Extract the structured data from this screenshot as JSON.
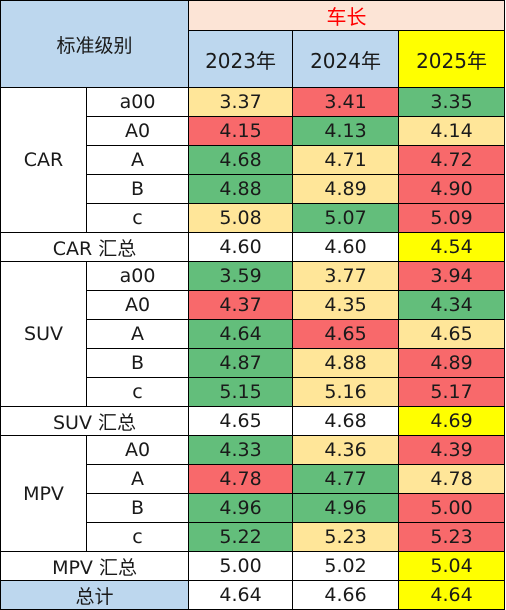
{
  "header": {
    "level_label": "标准级别",
    "metric": "车长",
    "years": [
      "2023年",
      "2024年",
      "2025年"
    ]
  },
  "colors": {
    "green": "#63be7b",
    "yellow": "#ffe699",
    "red": "#f8696b",
    "highlight": "#ffff00",
    "header_blue": "#bdd7ee",
    "header_peach": "#fce4d6"
  },
  "groups": [
    {
      "name": "CAR",
      "rows": [
        {
          "level": "a00",
          "values": [
            "3.37",
            "3.41",
            "3.35"
          ],
          "colors": [
            "y",
            "r",
            "g"
          ]
        },
        {
          "level": "A0",
          "values": [
            "4.15",
            "4.13",
            "4.14"
          ],
          "colors": [
            "r",
            "g",
            "y"
          ]
        },
        {
          "level": "A",
          "values": [
            "4.68",
            "4.71",
            "4.72"
          ],
          "colors": [
            "g",
            "y",
            "r"
          ]
        },
        {
          "level": "B",
          "values": [
            "4.88",
            "4.89",
            "4.90"
          ],
          "colors": [
            "g",
            "y",
            "r"
          ]
        },
        {
          "level": "c",
          "values": [
            "5.08",
            "5.07",
            "5.09"
          ],
          "colors": [
            "y",
            "g",
            "r"
          ]
        }
      ],
      "summary": {
        "label": "CAR 汇总",
        "values": [
          "4.60",
          "4.60",
          "4.54"
        ]
      }
    },
    {
      "name": "SUV",
      "rows": [
        {
          "level": "a00",
          "values": [
            "3.59",
            "3.77",
            "3.94"
          ],
          "colors": [
            "g",
            "y",
            "r"
          ]
        },
        {
          "level": "A0",
          "values": [
            "4.37",
            "4.35",
            "4.34"
          ],
          "colors": [
            "r",
            "y",
            "g"
          ]
        },
        {
          "level": "A",
          "values": [
            "4.64",
            "4.65",
            "4.65"
          ],
          "colors": [
            "g",
            "r",
            "y"
          ]
        },
        {
          "level": "B",
          "values": [
            "4.87",
            "4.88",
            "4.89"
          ],
          "colors": [
            "g",
            "y",
            "r"
          ]
        },
        {
          "level": "c",
          "values": [
            "5.15",
            "5.16",
            "5.17"
          ],
          "colors": [
            "g",
            "y",
            "r"
          ]
        }
      ],
      "summary": {
        "label": "SUV 汇总",
        "values": [
          "4.65",
          "4.68",
          "4.69"
        ]
      }
    },
    {
      "name": "MPV",
      "rows": [
        {
          "level": "A0",
          "values": [
            "4.33",
            "4.36",
            "4.39"
          ],
          "colors": [
            "g",
            "y",
            "r"
          ]
        },
        {
          "level": "A",
          "values": [
            "4.78",
            "4.77",
            "4.78"
          ],
          "colors": [
            "r",
            "g",
            "y"
          ]
        },
        {
          "level": "B",
          "values": [
            "4.96",
            "4.96",
            "5.00"
          ],
          "colors": [
            "g",
            "g",
            "r"
          ]
        },
        {
          "level": "c",
          "values": [
            "5.22",
            "5.23",
            "5.23"
          ],
          "colors": [
            "g",
            "y",
            "r"
          ]
        }
      ],
      "summary": {
        "label": "MPV 汇总",
        "values": [
          "5.00",
          "5.02",
          "5.04"
        ]
      }
    }
  ],
  "total": {
    "label": "总计",
    "values": [
      "4.64",
      "4.66",
      "4.64"
    ]
  }
}
